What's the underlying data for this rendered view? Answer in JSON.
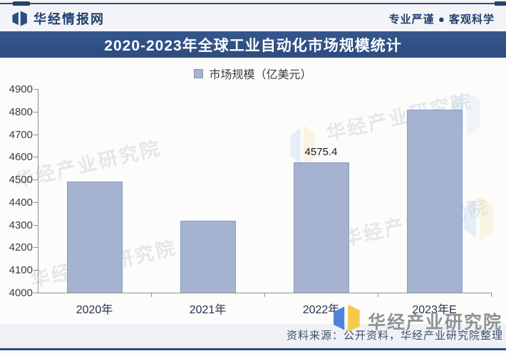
{
  "header": {
    "brand": "华经情报网",
    "slogan": "专业严谨 ● 客观科学",
    "title": "2020-2023年全球工业自动化市场规模统计"
  },
  "legend": {
    "label": "市场规模（亿美元）"
  },
  "chart_data": {
    "type": "bar",
    "title": "2020-2023年全球工业自动化市场规模统计",
    "categories": [
      "2020年",
      "2021年",
      "2022年",
      "2023年E"
    ],
    "series": [
      {
        "name": "市场规模（亿美元）",
        "values": [
          4490,
          4318,
          4575.4,
          4808
        ]
      }
    ],
    "data_labels": [
      "",
      "",
      "4575.4",
      ""
    ],
    "ylim": [
      4000,
      4900
    ],
    "y_ticks": [
      4900,
      4800,
      4700,
      4600,
      4500,
      4400,
      4300,
      4200,
      4100,
      4000
    ],
    "grid": false,
    "legend_position": "top",
    "bar_color": "#a5b3d1",
    "bar_border_color": "#8a9cc4",
    "xlabel": "",
    "ylabel": ""
  },
  "watermark": {
    "text": "华经产业研究院"
  },
  "footer": {
    "brand": "华经产业研究院",
    "source": "资料来源：公开资料，华经产业研究院整理"
  },
  "colors": {
    "navy": "#2d4c7f",
    "bar": "#a5b3d1",
    "logo_blue": "#4f83d9",
    "logo_yellow": "#f7c94b"
  }
}
